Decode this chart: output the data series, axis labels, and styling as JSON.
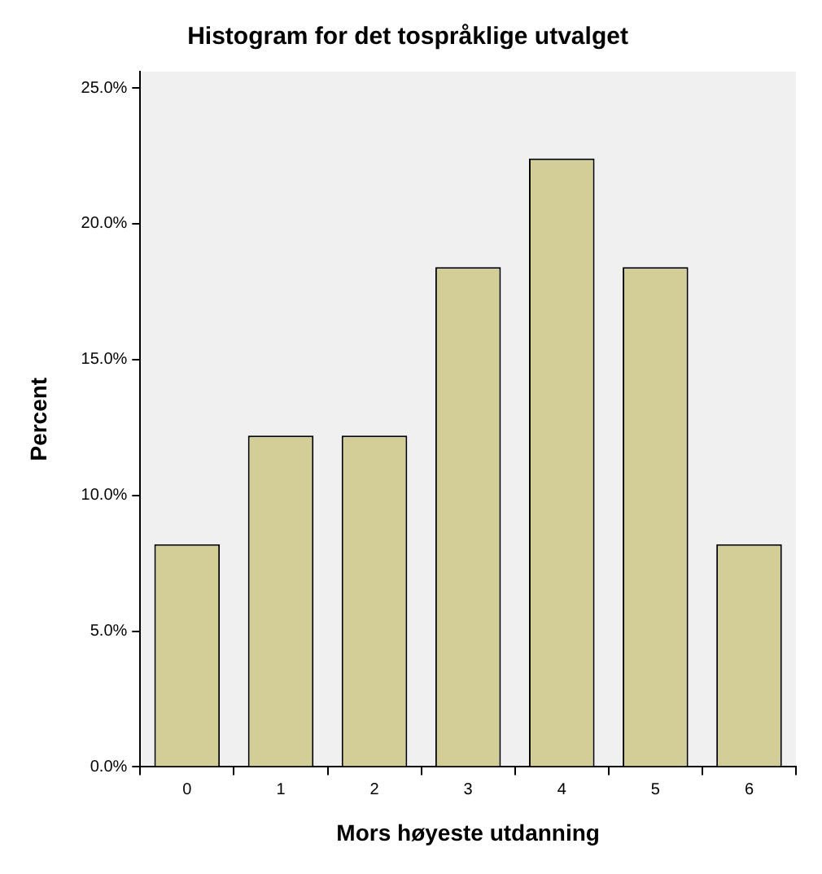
{
  "chart_data": {
    "type": "bar",
    "title": "Histogram for det tospråklige utvalget",
    "xlabel": "Mors høyeste utdanning",
    "ylabel": "Percent",
    "categories": [
      "0",
      "1",
      "2",
      "3",
      "4",
      "5",
      "6"
    ],
    "values": [
      8.2,
      12.2,
      12.2,
      18.4,
      22.4,
      18.4,
      8.2
    ],
    "color": "#d3ce97",
    "ylim": [
      0,
      25.6
    ],
    "yticks": [
      {
        "value": 0,
        "label": "0.0%"
      },
      {
        "value": 5,
        "label": "5.0%"
      },
      {
        "value": 10,
        "label": "10.0%"
      },
      {
        "value": 15,
        "label": "15.0%"
      },
      {
        "value": 20,
        "label": "20.0%"
      },
      {
        "value": 25,
        "label": "25.0%"
      }
    ],
    "grid": false,
    "legend": false
  }
}
